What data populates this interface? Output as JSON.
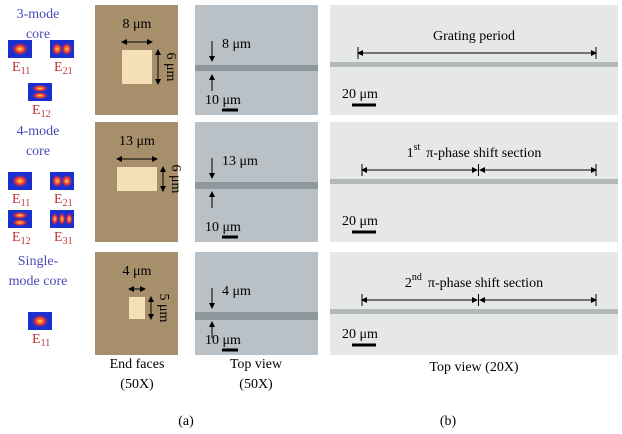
{
  "panel_a": {
    "rows": [
      {
        "core_label": [
          "3-mode",
          "core"
        ],
        "modes": [
          {
            "letter": "E",
            "index": "11"
          },
          {
            "letter": "E",
            "index": "21"
          },
          {
            "letter": "E",
            "index": "12"
          }
        ],
        "end_face_width": "8 μm",
        "end_face_height": "6 μm",
        "top_view_width": "8 μm",
        "top_view_scale": "10 μm"
      },
      {
        "core_label": [
          "4-mode",
          "core"
        ],
        "modes": [
          {
            "letter": "E",
            "index": "11"
          },
          {
            "letter": "E",
            "index": "21"
          },
          {
            "letter": "E",
            "index": "12"
          },
          {
            "letter": "E",
            "index": "31"
          }
        ],
        "end_face_width": "13 μm",
        "end_face_height": "6 μm",
        "top_view_width": "13 μm",
        "top_view_scale": "10 μm"
      },
      {
        "core_label": [
          "Single-",
          "mode core"
        ],
        "modes": [
          {
            "letter": "E",
            "index": "11"
          }
        ],
        "end_face_width": "4 μm",
        "end_face_height": "5 μm",
        "top_view_width": "4 μm",
        "top_view_scale": "10 μm"
      }
    ],
    "captions": [
      [
        "End faces",
        "(50X)"
      ],
      [
        "Top view",
        "(50X)"
      ]
    ],
    "label": "(a)"
  },
  "panel_b": {
    "rows": [
      {
        "title": "Grating period",
        "scale": "20 μm"
      },
      {
        "ordinal": "1",
        "suffix": "st",
        "title": "π-phase shift section",
        "scale": "20 μm"
      },
      {
        "ordinal": "2",
        "suffix": "nd",
        "title": "π-phase shift section",
        "scale": "20 μm"
      }
    ],
    "caption": "Top view (20X)",
    "label": "(b)"
  }
}
